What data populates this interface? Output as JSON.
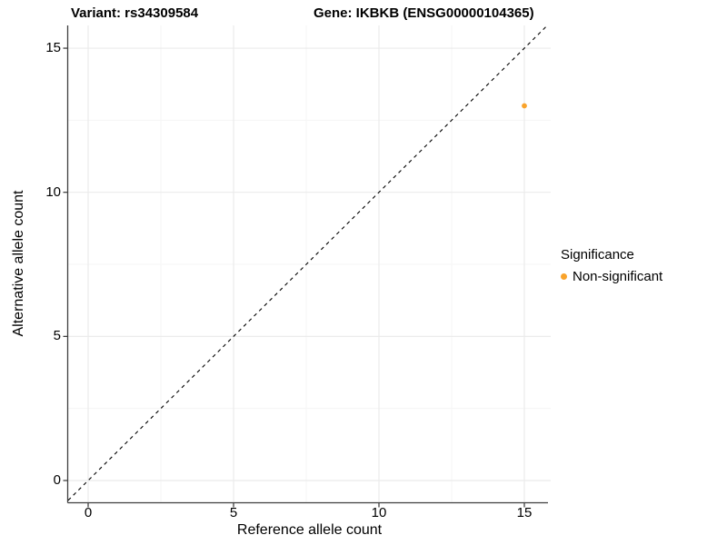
{
  "header": {
    "variant_title": "Variant: rs34309584",
    "gene_title": "Gene: IKBKB (ENSG00000104365)"
  },
  "axes": {
    "x": {
      "label": "Reference allele count"
    },
    "y": {
      "label": "Alternative allele count"
    }
  },
  "legend": {
    "title": "Significance",
    "items": [
      {
        "label": "Non-significant",
        "color": "#F9A32B",
        "marker": "circle"
      }
    ]
  },
  "chart_data": {
    "type": "scatter",
    "title": "Variant: rs34309584 | Gene: IKBKB (ENSG00000104365)",
    "xlabel": "Reference allele count",
    "ylabel": "Alternative allele count",
    "xlim": [
      0,
      15
    ],
    "ylim": [
      0,
      15
    ],
    "x_ticks": [
      0,
      5,
      10,
      15
    ],
    "y_ticks": [
      0,
      5,
      10,
      15
    ],
    "x_minor_ticks": [
      2.5,
      7.5,
      12.5
    ],
    "y_minor_ticks": [
      2.5,
      7.5,
      12.5
    ],
    "grid": true,
    "legend_position": "right",
    "series": [
      {
        "name": "Non-significant",
        "color": "#F9A32B",
        "points": [
          {
            "x": 15,
            "y": 13
          }
        ]
      }
    ],
    "reference_line": {
      "type": "identity",
      "slope": 1,
      "intercept": 0,
      "style": "dashed",
      "color": "#000000"
    }
  },
  "style_colors": {
    "point": "#F9A32B",
    "grid_major": "#EBEBEB",
    "grid_minor": "#F5F5F5",
    "axis_line": "#3F3F3F",
    "tick_mark": "#333333"
  }
}
